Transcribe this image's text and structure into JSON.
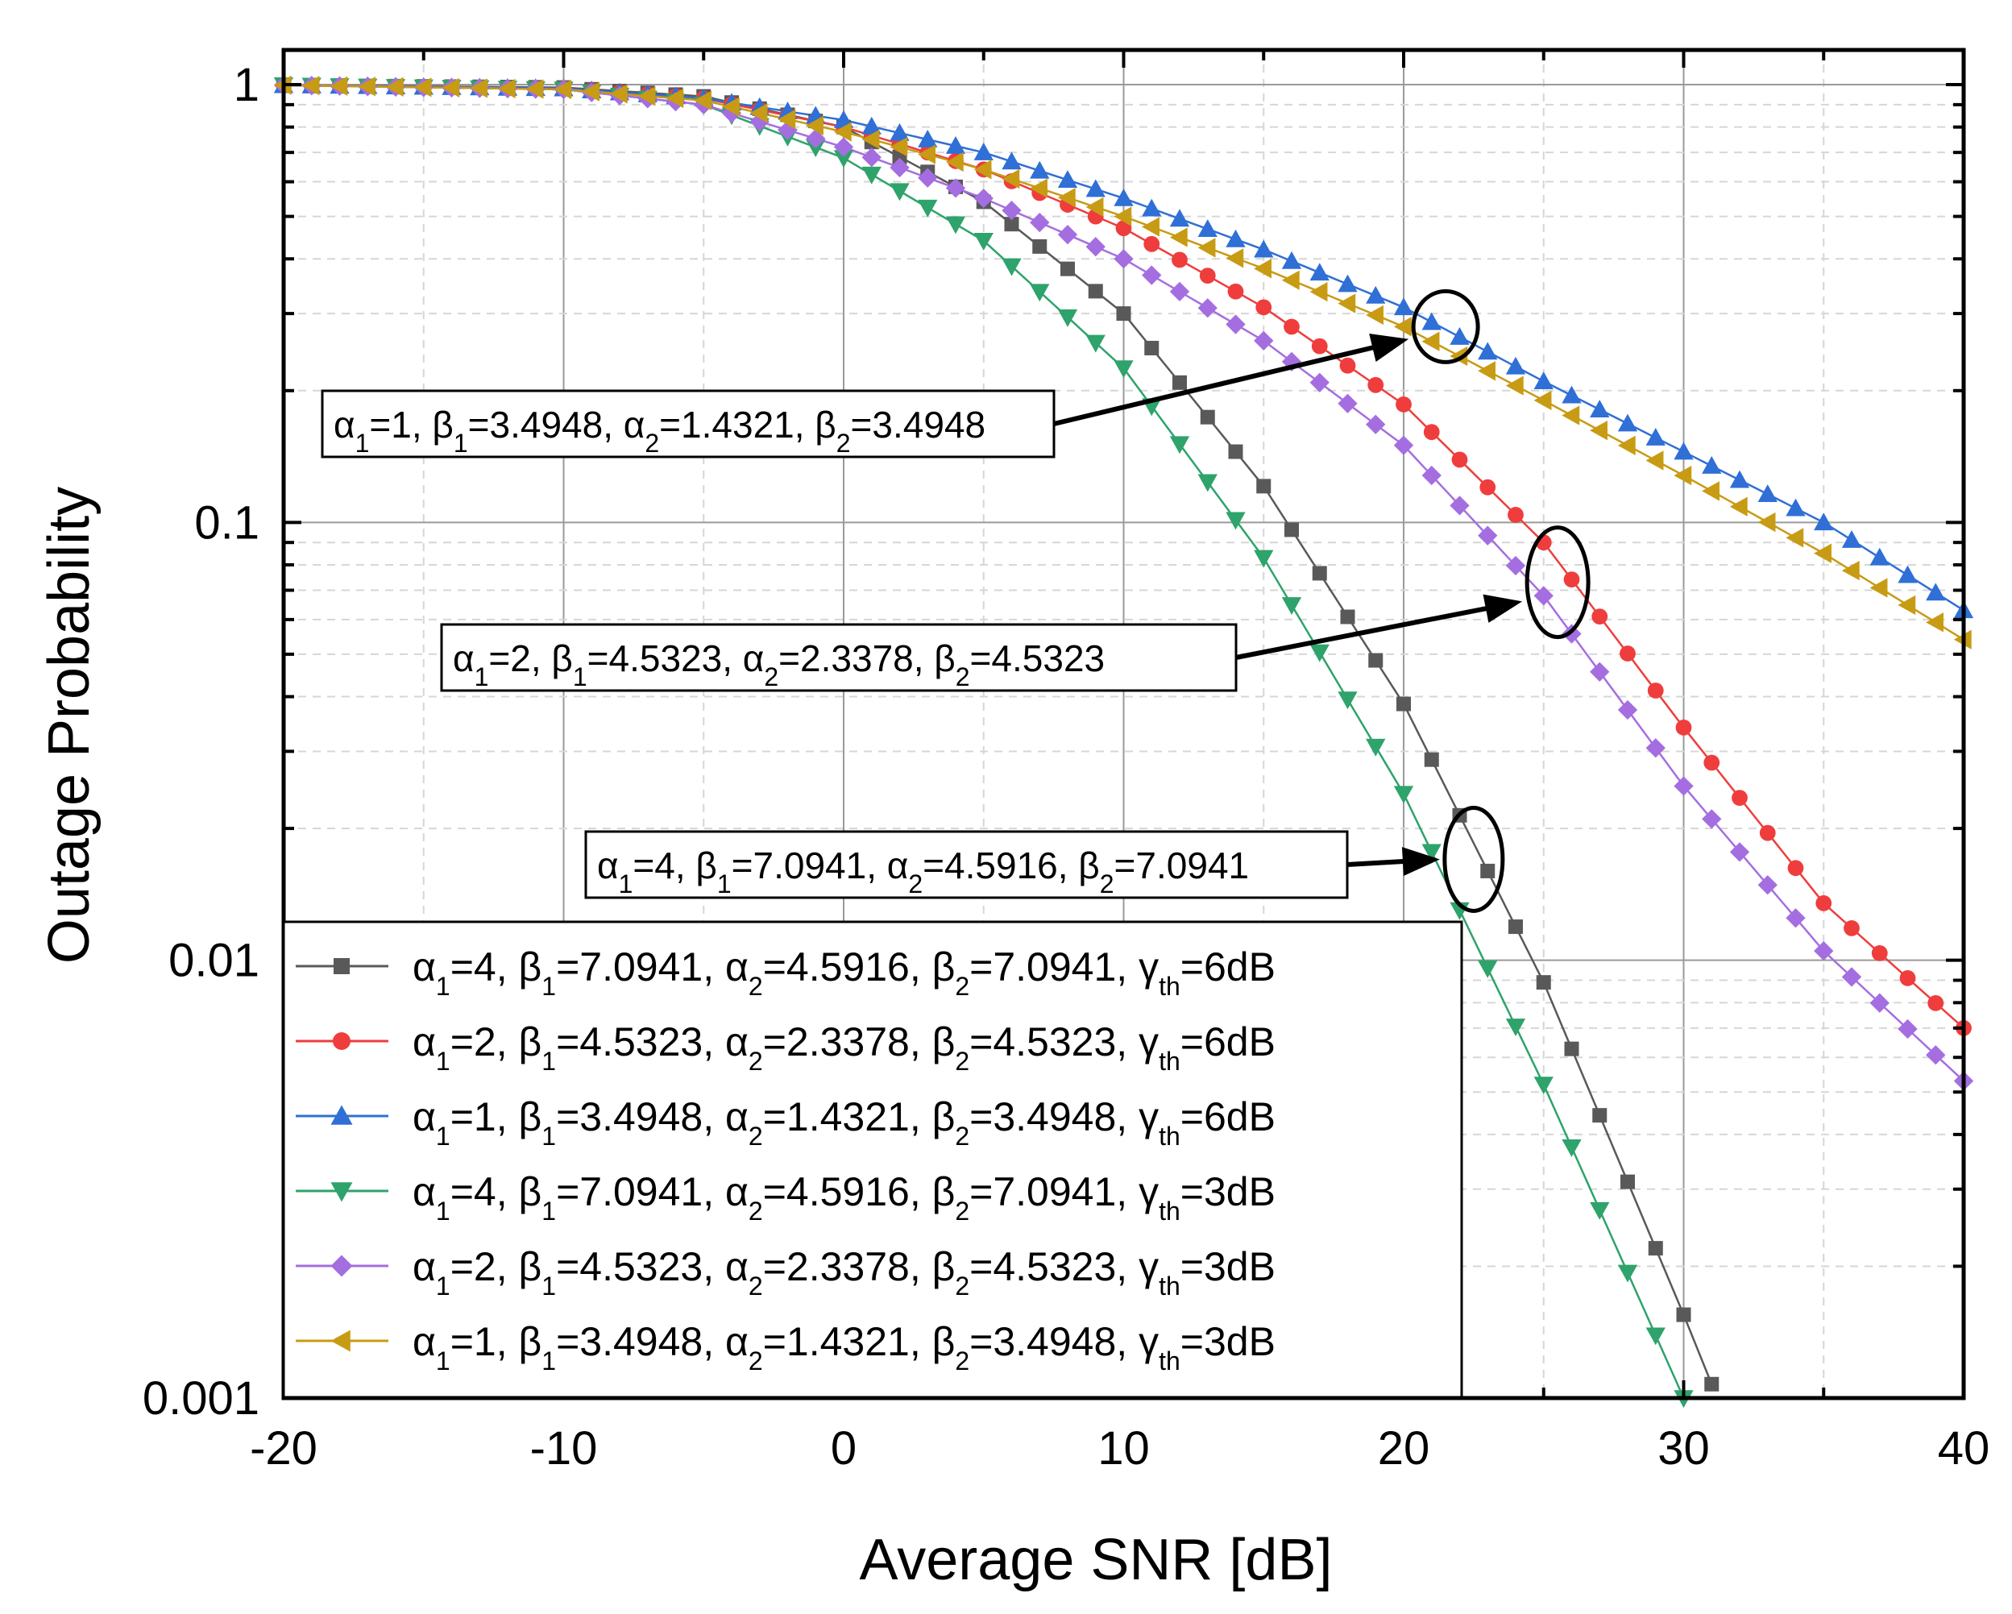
{
  "chart_data": {
    "type": "line",
    "yscale": "log",
    "xlabel": "Average SNR [dB]",
    "ylabel": "Outage Probability",
    "xlim": [
      -20,
      40
    ],
    "ylim": [
      0.001,
      1.2
    ],
    "xticks": [
      -20,
      -10,
      0,
      10,
      20,
      30,
      40
    ],
    "xtick_labels": [
      "-20",
      "-10",
      "0",
      "10",
      "20",
      "30",
      "40"
    ],
    "yticks": [
      1,
      0.1,
      0.01,
      0.001
    ],
    "ytick_labels": [
      "1",
      "0.1",
      "0.01",
      "0.001"
    ],
    "grid": true,
    "legend_position": "bottom-left",
    "series": [
      {
        "name": "α1=4, β1=7.0941, α2=4.5916, β2=7.0941, γth=6dB",
        "label": {
          "a1": "4",
          "b1": "7.0941",
          "a2": "4.5916",
          "b2": "7.0941",
          "gth": "6dB"
        },
        "color": "#595959",
        "marker": "square",
        "anchors": [
          [
            -20,
            0.997
          ],
          [
            -10,
            0.985
          ],
          [
            -5,
            0.94
          ],
          [
            0,
            0.8
          ],
          [
            5,
            0.54
          ],
          [
            10,
            0.3
          ],
          [
            15,
            0.121
          ],
          [
            20,
            0.0385
          ],
          [
            25,
            0.0089
          ],
          [
            30,
            0.00155
          ],
          [
            31.2,
            0.001
          ]
        ]
      },
      {
        "name": "α1=2, β1=4.5323, α2=2.3378, β2=4.5323, γth=6dB",
        "label": {
          "a1": "2",
          "b1": "4.5323",
          "a2": "2.3378",
          "b2": "4.5323",
          "gth": "6dB"
        },
        "color": "#ef3d3d",
        "marker": "circle",
        "anchors": [
          [
            -20,
            0.997
          ],
          [
            -10,
            0.98
          ],
          [
            -5,
            0.93
          ],
          [
            0,
            0.8
          ],
          [
            5,
            0.64
          ],
          [
            10,
            0.47
          ],
          [
            15,
            0.31
          ],
          [
            20,
            0.186
          ],
          [
            25,
            0.09
          ],
          [
            30,
            0.034
          ],
          [
            35,
            0.0135
          ],
          [
            40,
            0.007
          ]
        ]
      },
      {
        "name": "α1=1, β1=3.4948, α2=1.4321, β2=3.4948, γth=6dB",
        "label": {
          "a1": "1",
          "b1": "3.4948",
          "a2": "1.4321",
          "b2": "3.4948",
          "gth": "6dB"
        },
        "color": "#2f6fd6",
        "marker": "triangle-up",
        "anchors": [
          [
            -20,
            0.997
          ],
          [
            -10,
            0.98
          ],
          [
            -5,
            0.93
          ],
          [
            0,
            0.83
          ],
          [
            5,
            0.7
          ],
          [
            10,
            0.55
          ],
          [
            15,
            0.42
          ],
          [
            20,
            0.31
          ],
          [
            25,
            0.21
          ],
          [
            30,
            0.145
          ],
          [
            35,
            0.1
          ],
          [
            40,
            0.063
          ]
        ]
      },
      {
        "name": "α1=4, β1=7.0941, α2=4.5916, β2=7.0941, γth=3dB",
        "label": {
          "a1": "4",
          "b1": "7.0941",
          "a2": "4.5916",
          "b2": "7.0941",
          "gth": "3dB"
        },
        "color": "#2ea36b",
        "marker": "triangle-down",
        "anchors": [
          [
            -20,
            0.997
          ],
          [
            -10,
            0.975
          ],
          [
            -5,
            0.9
          ],
          [
            0,
            0.68
          ],
          [
            5,
            0.44
          ],
          [
            10,
            0.225
          ],
          [
            15,
            0.083
          ],
          [
            20,
            0.024
          ],
          [
            25,
            0.0052
          ],
          [
            30,
            0.001
          ]
        ]
      },
      {
        "name": "α1=2, β1=4.5323, α2=2.3378, β2=4.5323, γth=3dB",
        "label": {
          "a1": "2",
          "b1": "4.5323",
          "a2": "2.3378",
          "b2": "4.5323",
          "gth": "3dB"
        },
        "color": "#a56ee0",
        "marker": "diamond",
        "anchors": [
          [
            -20,
            0.997
          ],
          [
            -10,
            0.975
          ],
          [
            -5,
            0.9
          ],
          [
            0,
            0.72
          ],
          [
            5,
            0.55
          ],
          [
            10,
            0.4
          ],
          [
            15,
            0.26
          ],
          [
            20,
            0.15
          ],
          [
            25,
            0.068
          ],
          [
            30,
            0.025
          ],
          [
            35,
            0.0105
          ],
          [
            40,
            0.0053
          ]
        ]
      },
      {
        "name": "α1=1, β1=3.4948, α2=1.4321, β2=3.4948, γth=3dB",
        "label": {
          "a1": "1",
          "b1": "3.4948",
          "a2": "1.4321",
          "b2": "3.4948",
          "gth": "3dB"
        },
        "color": "#c89b14",
        "marker": "triangle-left",
        "anchors": [
          [
            -20,
            0.997
          ],
          [
            -10,
            0.975
          ],
          [
            -5,
            0.92
          ],
          [
            0,
            0.78
          ],
          [
            5,
            0.64
          ],
          [
            10,
            0.5
          ],
          [
            15,
            0.38
          ],
          [
            20,
            0.28
          ],
          [
            25,
            0.19
          ],
          [
            30,
            0.128
          ],
          [
            35,
            0.085
          ],
          [
            40,
            0.054
          ]
        ]
      }
    ],
    "annotations": [
      {
        "text": "α1=1, β1=3.4948, α2=1.4321, β2=3.4948",
        "parts": {
          "a1": "1",
          "b1": "3.4948",
          "a2": "1.4321",
          "b2": "3.4948"
        },
        "target_snr": 21.5,
        "target_p": 0.28
      },
      {
        "text": "α1=2, β1=4.5323, α2=2.3378, β2=4.5323",
        "parts": {
          "a1": "2",
          "b1": "4.5323",
          "a2": "2.3378",
          "b2": "4.5323"
        },
        "target_snr": 25.5,
        "target_p": 0.073
      },
      {
        "text": "α1=4, β1=7.0941, α2=4.5916, β2=7.0941",
        "parts": {
          "a1": "4",
          "b1": "7.0941",
          "a2": "4.5916",
          "b2": "7.0941"
        },
        "target_snr": 22.5,
        "target_p": 0.017
      }
    ]
  }
}
